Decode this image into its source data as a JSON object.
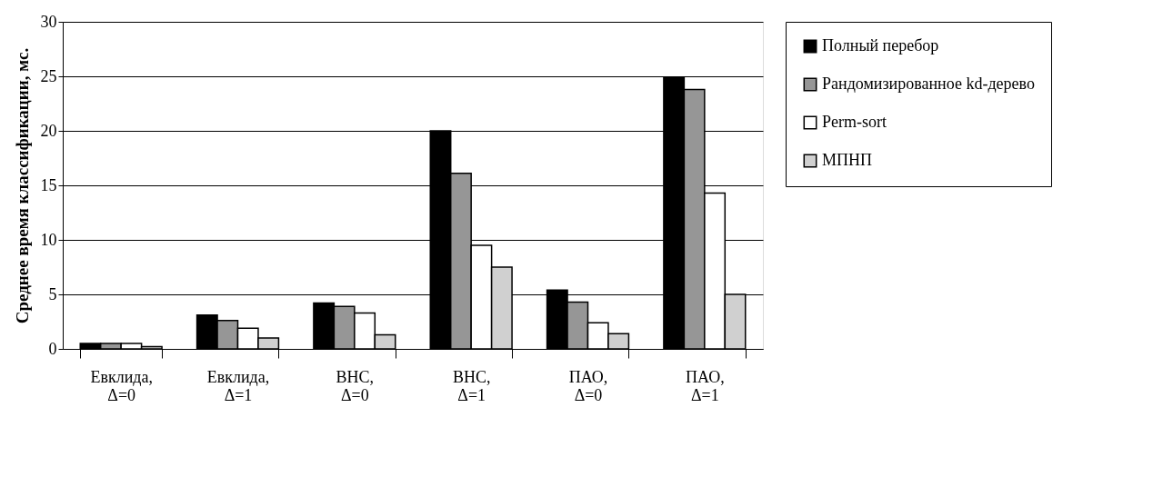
{
  "chart_data": {
    "type": "bar",
    "ylabel": "Среднее время классификации, мс.",
    "categories": [
      "Евклида,\nΔ=0",
      "Евклида,\nΔ=1",
      "ВНС,\nΔ=0",
      "ВНС,\nΔ=1",
      "ПАО,\nΔ=0",
      "ПАО,\nΔ=1"
    ],
    "series": [
      {
        "name": "Полный перебор",
        "color": "#000000",
        "values": [
          0.5,
          3.1,
          4.2,
          20.0,
          5.4,
          24.9
        ]
      },
      {
        "name": "Рандомизированное kd-дерево",
        "color": "#969696",
        "values": [
          0.5,
          2.6,
          3.9,
          16.1,
          4.3,
          23.8
        ]
      },
      {
        "name": "Perm-sort",
        "color": "#ffffff",
        "values": [
          0.5,
          1.9,
          3.3,
          9.5,
          2.4,
          14.3
        ]
      },
      {
        "name": "МПНП",
        "color": "#d0d0d0",
        "values": [
          0.2,
          1.0,
          1.3,
          7.5,
          1.4,
          5.0
        ]
      }
    ],
    "ylim": [
      0,
      30
    ],
    "yticks": [
      0,
      5,
      10,
      15,
      20,
      25,
      30
    ],
    "grid": "y",
    "legend": "right"
  }
}
